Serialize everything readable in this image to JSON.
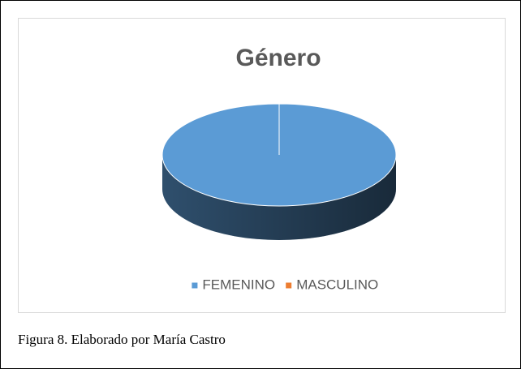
{
  "chart_data": {
    "type": "pie",
    "title": "Género",
    "categories": [
      "FEMENINO",
      "MASCULINO"
    ],
    "values": [
      100,
      0
    ],
    "colors": [
      "#5b9bd5",
      "#ed7d31"
    ],
    "legend": "bottom"
  },
  "caption": "Figura 8. Elaborado por María Castro"
}
